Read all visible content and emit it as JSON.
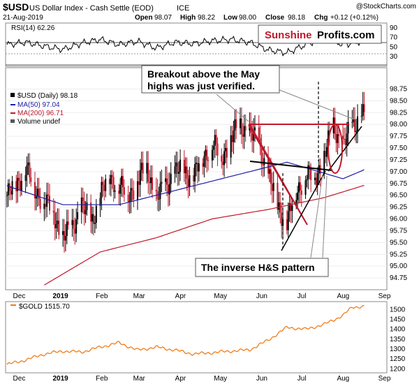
{
  "header": {
    "symbol": "$USD",
    "name": "US Dollar Index - Cash Settle (EOD)",
    "exchange": "ICE",
    "date": "21-Aug-2019",
    "credit": "@StockCharts.com",
    "ohlc": {
      "open_label": "Open",
      "open": "98.07",
      "high_label": "High",
      "high": "98.22",
      "low_label": "Low",
      "low": "98.00",
      "close_label": "Close",
      "close": "98.18",
      "chg_label": "Chg",
      "chg": "+0.12 (+0.12%)"
    }
  },
  "logo": {
    "part1": "Sunshine",
    "part2": "Profits.com"
  },
  "rsi_panel": {
    "label": "RSI(14) 62.26",
    "ticks": [
      "90",
      "70",
      "50",
      "30"
    ],
    "overbought": 70,
    "oversold": 30
  },
  "main_panel": {
    "legend": {
      "price": "$USD (Daily) 98.18",
      "ma50": "MA(50) 97.04",
      "ma200": "MA(200) 96.71",
      "volume": "Volume undef"
    },
    "annotations": {
      "breakout_line1": "Breakout above the May",
      "breakout_line2": "highs was just verified.",
      "inverse_hs": "The inverse H&S pattern"
    }
  },
  "gold_panel": {
    "label": "$GOLD 1515.70",
    "ticks": [
      "1500",
      "1450",
      "1400",
      "1350",
      "1300",
      "1250",
      "1200"
    ]
  },
  "x_axis": {
    "labels": [
      "Dec",
      "2019",
      "Feb",
      "Mar",
      "Apr",
      "May",
      "Jun",
      "Jul",
      "Aug",
      "Sep"
    ]
  },
  "colors": {
    "up_candle": "#000000",
    "down_candle": "#c0182a",
    "ma50": "#1a1aa6",
    "ma200": "#c0182a",
    "gold_line": "#f07d1a",
    "rsi_line": "#000000",
    "annotation_red": "#c0182a",
    "logo_red": "#c0182a"
  },
  "chart_data": [
    {
      "type": "line",
      "title": "RSI(14) 62.26",
      "ylim": [
        10,
        100
      ],
      "series": [
        {
          "name": "RSI(14) 62.26",
          "x": [
            "2018-11-26",
            "2018-12-10",
            "2018-12-24",
            "2019-01-07",
            "2019-01-21",
            "2019-02-04",
            "2019-02-18",
            "2019-03-04",
            "2019-03-18",
            "2019-04-01",
            "2019-04-15",
            "2019-04-29",
            "2019-05-13",
            "2019-05-27",
            "2019-06-10",
            "2019-06-24",
            "2019-07-08",
            "2019-07-22",
            "2019-08-05",
            "2019-08-21"
          ],
          "values": [
            55,
            60,
            52,
            45,
            58,
            66,
            55,
            62,
            48,
            60,
            57,
            63,
            66,
            60,
            44,
            38,
            55,
            70,
            55,
            62.26
          ]
        }
      ]
    },
    {
      "type": "line",
      "title": "$USD (Daily) 98.18",
      "xlabel": "",
      "ylabel": "",
      "ylim": [
        94.5,
        99.2
      ],
      "y_ticks": [
        94.75,
        95.0,
        95.25,
        95.5,
        95.75,
        96.0,
        96.25,
        96.5,
        96.75,
        97.0,
        97.25,
        97.5,
        97.75,
        98.0,
        98.25,
        98.5,
        98.75
      ],
      "series": [
        {
          "name": "$USD (Daily) 98.18",
          "x": [
            "2018-11-26",
            "2018-12-03",
            "2018-12-10",
            "2018-12-17",
            "2018-12-24",
            "2018-12-31",
            "2019-01-07",
            "2019-01-14",
            "2019-01-21",
            "2019-01-28",
            "2019-02-04",
            "2019-02-11",
            "2019-02-18",
            "2019-02-25",
            "2019-03-04",
            "2019-03-11",
            "2019-03-18",
            "2019-03-25",
            "2019-04-01",
            "2019-04-08",
            "2019-04-15",
            "2019-04-22",
            "2019-04-29",
            "2019-05-06",
            "2019-05-13",
            "2019-05-20",
            "2019-05-27",
            "2019-06-03",
            "2019-06-10",
            "2019-06-17",
            "2019-06-24",
            "2019-07-01",
            "2019-07-08",
            "2019-07-15",
            "2019-07-22",
            "2019-07-29",
            "2019-08-05",
            "2019-08-12",
            "2019-08-19"
          ],
          "values": [
            96.5,
            96.7,
            97.1,
            96.6,
            96.4,
            96.1,
            95.6,
            95.8,
            96.3,
            95.9,
            96.5,
            96.9,
            96.7,
            96.5,
            96.8,
            97.1,
            96.4,
            96.7,
            97.0,
            97.0,
            96.9,
            97.3,
            97.6,
            97.3,
            97.7,
            98.0,
            97.8,
            97.6,
            96.9,
            96.3,
            95.9,
            96.6,
            96.9,
            96.9,
            97.3,
            98.0,
            97.5,
            98.0,
            98.18
          ]
        },
        {
          "name": "MA(50) 97.04",
          "x": [
            "2018-11-26",
            "2019-01-07",
            "2019-02-18",
            "2019-04-01",
            "2019-05-13",
            "2019-06-24",
            "2019-08-05",
            "2019-08-21"
          ],
          "values": [
            96.7,
            96.3,
            96.3,
            96.6,
            96.9,
            97.2,
            96.85,
            97.04
          ]
        },
        {
          "name": "MA(200) 96.71",
          "x": [
            "2018-12-24",
            "2019-02-04",
            "2019-03-18",
            "2019-04-29",
            "2019-06-10",
            "2019-07-22",
            "2019-08-21"
          ],
          "values": [
            94.6,
            95.3,
            95.6,
            96.0,
            96.2,
            96.45,
            96.71
          ]
        }
      ]
    },
    {
      "type": "line",
      "title": "$GOLD 1515.70",
      "ylim": [
        1180,
        1540
      ],
      "y_ticks": [
        1200,
        1250,
        1300,
        1350,
        1400,
        1450,
        1500
      ],
      "series": [
        {
          "name": "$GOLD 1515.70",
          "x": [
            "2018-11-26",
            "2018-12-10",
            "2018-12-24",
            "2019-01-07",
            "2019-01-21",
            "2019-02-04",
            "2019-02-18",
            "2019-03-04",
            "2019-03-18",
            "2019-04-01",
            "2019-04-15",
            "2019-04-29",
            "2019-05-13",
            "2019-05-27",
            "2019-06-10",
            "2019-06-24",
            "2019-07-08",
            "2019-07-22",
            "2019-08-05",
            "2019-08-12",
            "2019-08-21"
          ],
          "values": [
            1222,
            1245,
            1275,
            1290,
            1285,
            1310,
            1332,
            1295,
            1310,
            1295,
            1275,
            1282,
            1290,
            1296,
            1345,
            1410,
            1400,
            1425,
            1470,
            1512,
            1515.7
          ]
        }
      ]
    }
  ]
}
